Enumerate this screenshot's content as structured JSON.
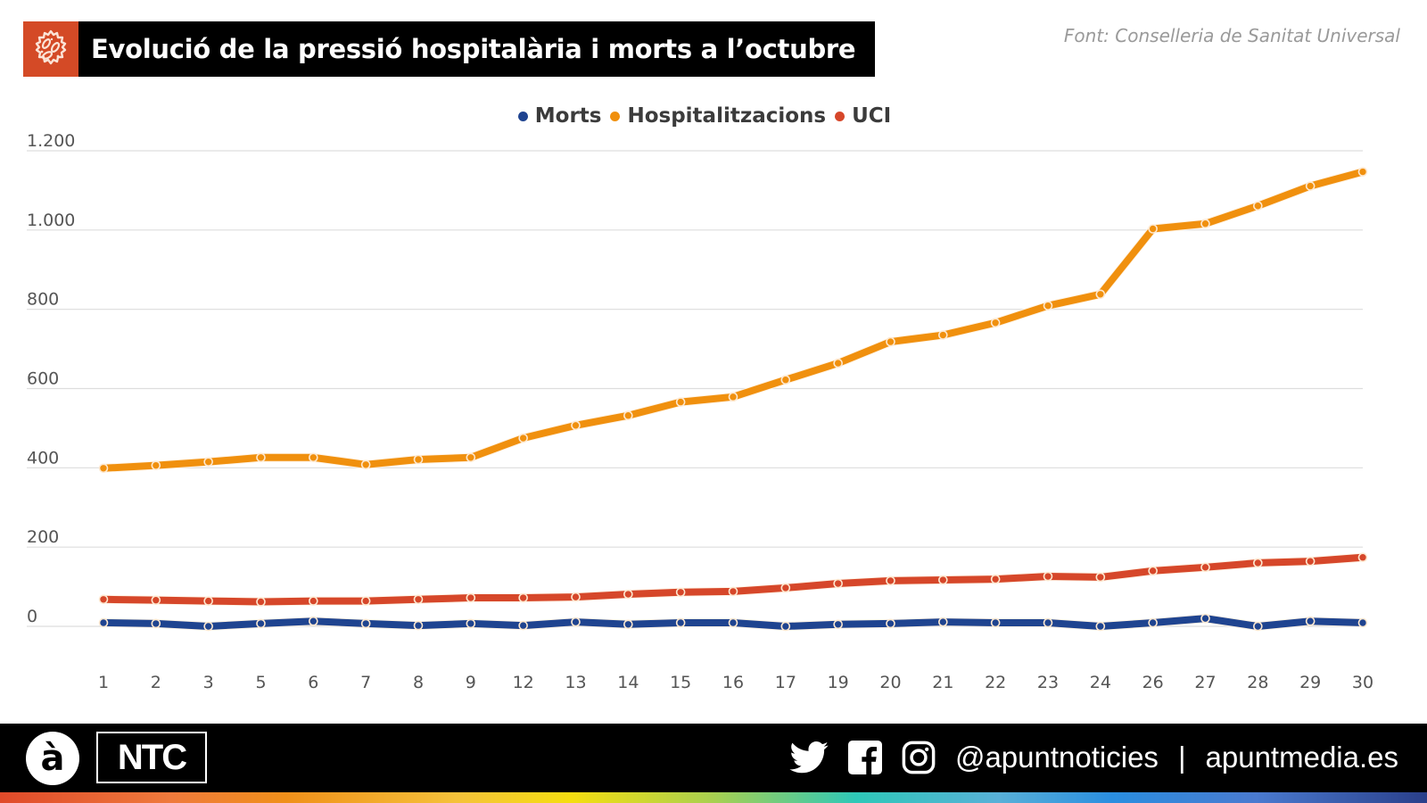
{
  "header": {
    "title": "Evolució de la pressió hospitalària i morts a l’octubre",
    "title_icon": "virus-icon",
    "source": "Font: Conselleria de Sanitat Universal"
  },
  "footer": {
    "logo_a": "à",
    "logo_ntc": "NTC",
    "social_icons": [
      "twitter-icon",
      "facebook-icon",
      "instagram-icon"
    ],
    "handle": "@apuntnoticies",
    "separator": "|",
    "website": "apuntmedia.es"
  },
  "colors": {
    "morts": "#1f4490",
    "hospitalitzacions": "#f0900e",
    "uci": "#d6472a",
    "title_icon_bg": "#d44a26",
    "grid": "#dddddd"
  },
  "chart_data": {
    "type": "line",
    "title": "Evolució de la pressió hospitalària i morts a l’octubre",
    "xlabel": "",
    "ylabel": "",
    "legend_position": "top-center",
    "grid": true,
    "ylim": [
      0,
      1200
    ],
    "yticks": [
      0,
      200,
      400,
      600,
      800,
      1000,
      1200
    ],
    "ytick_labels": [
      "0",
      "200",
      "400",
      "600",
      "800",
      "1.000",
      "1.200"
    ],
    "categories": [
      "1",
      "2",
      "3",
      "5",
      "6",
      "7",
      "8",
      "9",
      "12",
      "13",
      "14",
      "15",
      "16",
      "17",
      "19",
      "20",
      "21",
      "22",
      "23",
      "24",
      "26",
      "27",
      "28",
      "29",
      "30"
    ],
    "series": [
      {
        "name": "Morts",
        "color": "#1f4490",
        "values": [
          9,
          7,
          0,
          7,
          13,
          7,
          2,
          7,
          2,
          11,
          5,
          9,
          9,
          0,
          5,
          7,
          11,
          9,
          9,
          0,
          9,
          20,
          0,
          13,
          9
        ]
      },
      {
        "name": "Hospitalitzacions",
        "color": "#f0900e",
        "values": [
          399,
          406,
          415,
          426,
          426,
          408,
          421,
          426,
          475,
          507,
          532,
          566,
          579,
          622,
          664,
          718,
          735,
          766,
          809,
          838,
          1003,
          1016,
          1061,
          1111,
          1147
        ]
      },
      {
        "name": "UCI",
        "color": "#d6472a",
        "values": [
          68,
          66,
          64,
          62,
          64,
          64,
          68,
          72,
          72,
          74,
          81,
          86,
          88,
          97,
          108,
          115,
          117,
          119,
          126,
          124,
          140,
          149,
          160,
          164,
          174
        ]
      }
    ]
  }
}
